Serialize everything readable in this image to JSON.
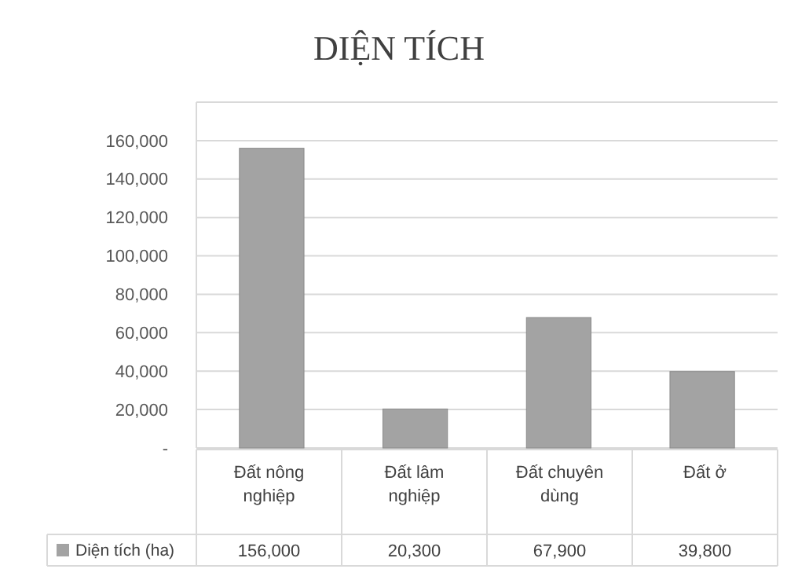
{
  "chart_data": {
    "type": "bar",
    "title": "DIỆN TÍCH",
    "categories": [
      "Đất nông nghiệp",
      "Đất lâm nghiệp",
      "Đất chuyên dùng",
      "Đất ở"
    ],
    "series": [
      {
        "name": "Diện tích (ha)",
        "color": "#a3a3a3",
        "values": [
          156000,
          20300,
          67900,
          39800
        ],
        "value_labels": [
          "156,000",
          "20,300",
          "67,900",
          "39,800"
        ]
      }
    ],
    "ylim": [
      0,
      180000
    ],
    "yticks": [
      {
        "value": 0,
        "label": "-"
      },
      {
        "value": 20000,
        "label": "20,000"
      },
      {
        "value": 40000,
        "label": "40,000"
      },
      {
        "value": 60000,
        "label": "60,000"
      },
      {
        "value": 80000,
        "label": "80,000"
      },
      {
        "value": 100000,
        "label": "100,000"
      },
      {
        "value": 120000,
        "label": "120,000"
      },
      {
        "value": 140000,
        "label": "140,000"
      },
      {
        "value": 160000,
        "label": "160,000"
      }
    ],
    "grid": "y",
    "legend": "bottom"
  }
}
